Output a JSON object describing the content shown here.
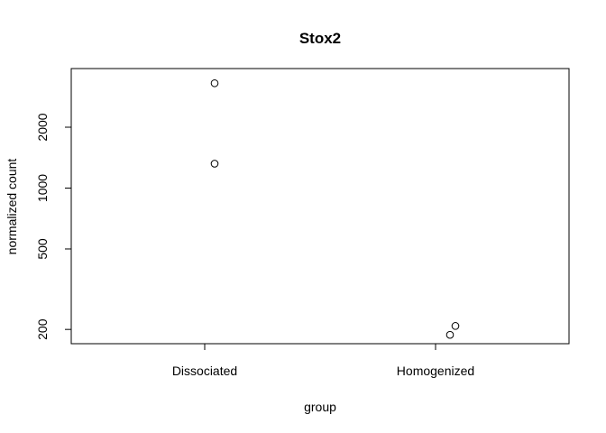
{
  "chart_data": {
    "type": "scatter",
    "title": "Stox2",
    "xlabel": "group",
    "ylabel": "normalized count",
    "categories": [
      "Dissociated",
      "Homogenized"
    ],
    "y_scale": "log",
    "y_ticks": [
      200,
      500,
      1000,
      2000
    ],
    "ylim": [
      170,
      3900
    ],
    "grid": false,
    "legend": "none",
    "points": [
      {
        "category": "Dissociated",
        "value": 3300
      },
      {
        "category": "Dissociated",
        "value": 1320
      },
      {
        "category": "Homogenized",
        "value": 208
      },
      {
        "category": "Homogenized",
        "value": 188
      }
    ]
  }
}
